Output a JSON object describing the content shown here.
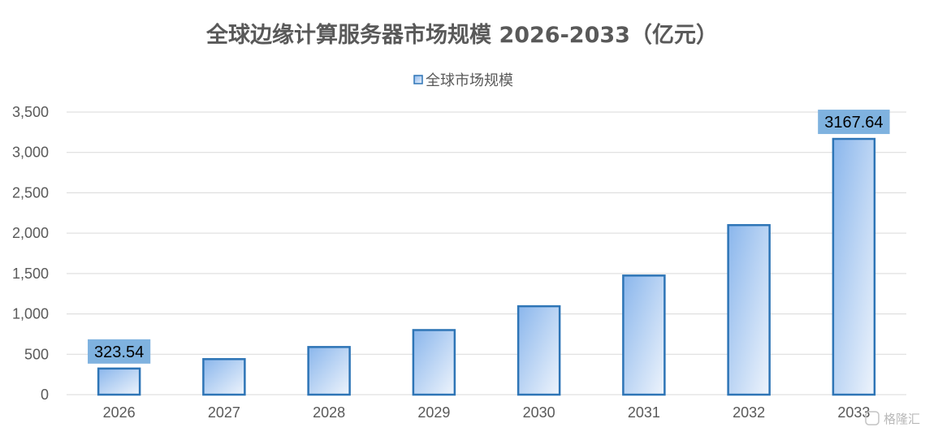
{
  "chart_data": {
    "type": "bar",
    "title": "全球边缘计算服务器市场规模 2026-2033（亿元）",
    "categories": [
      "2026",
      "2027",
      "2028",
      "2029",
      "2030",
      "2031",
      "2032",
      "2033"
    ],
    "series": [
      {
        "name": "全球市场规模",
        "values": [
          323.54,
          440,
          590,
          800,
          1095,
          1475,
          2100,
          3167.64
        ]
      }
    ],
    "data_labels": [
      {
        "index": 0,
        "text": "323.54"
      },
      {
        "index": 7,
        "text": "3167.64"
      }
    ],
    "ylim": [
      0,
      3500
    ],
    "yticks": [
      0,
      500,
      1000,
      1500,
      2000,
      2500,
      3000,
      3500
    ],
    "ytick_labels": [
      "0",
      "500",
      "1,000",
      "1,500",
      "2,000",
      "2,500",
      "3,000",
      "3,500"
    ],
    "legend_position": "top",
    "grid": true,
    "colors": {
      "bar_fill_start": "#8ab6ec",
      "bar_fill_end": "#eef4fc",
      "bar_stroke": "#2e75b6",
      "label_bg": "#7fb2df",
      "grid": "#d9d9d9"
    }
  },
  "watermark": "格隆汇"
}
